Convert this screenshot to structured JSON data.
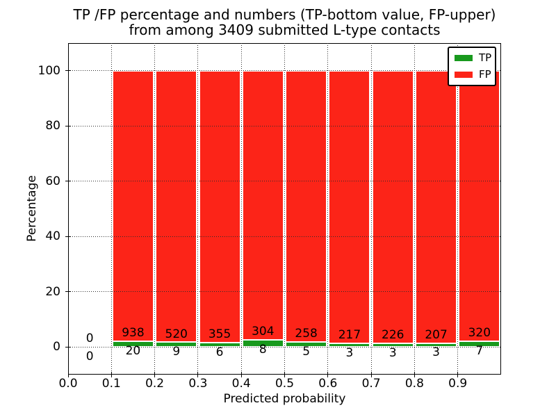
{
  "chart_data": {
    "type": "bar",
    "stacked": true,
    "title_line1": "TP /FP percentage and numbers (TP-bottom value, FP-upper)",
    "title_line2": "from among 3409 submitted L-type contacts",
    "xlabel": "Predicted probability",
    "ylabel": "Percentage",
    "xlim": [
      0.0,
      1.0
    ],
    "ylim": [
      -10,
      110
    ],
    "grid": true,
    "legend_position": "upper right",
    "legend": [
      {
        "label": "TP",
        "color": "#18991d"
      },
      {
        "label": "FP",
        "color": "#fc2418"
      }
    ],
    "colors": {
      "tp": "#18991d",
      "fp": "#fc2418"
    },
    "xticks": [
      {
        "value": 0.0,
        "label": "0.0"
      },
      {
        "value": 0.1,
        "label": "0.1"
      },
      {
        "value": 0.2,
        "label": "0.2"
      },
      {
        "value": 0.3,
        "label": "0.3"
      },
      {
        "value": 0.4,
        "label": "0.4"
      },
      {
        "value": 0.5,
        "label": "0.5"
      },
      {
        "value": 0.6,
        "label": "0.6"
      },
      {
        "value": 0.7,
        "label": "0.7"
      },
      {
        "value": 0.8,
        "label": "0.8"
      },
      {
        "value": 0.9,
        "label": "0.9"
      }
    ],
    "yticks": [
      {
        "value": 0,
        "label": "0"
      },
      {
        "value": 20,
        "label": "20"
      },
      {
        "value": 40,
        "label": "40"
      },
      {
        "value": 60,
        "label": "60"
      },
      {
        "value": 80,
        "label": "80"
      },
      {
        "value": 100,
        "label": "100"
      }
    ],
    "bins": [
      {
        "range": [
          0.0,
          0.1
        ],
        "tp": 0,
        "fp": 0
      },
      {
        "range": [
          0.1,
          0.2
        ],
        "tp": 20,
        "fp": 938
      },
      {
        "range": [
          0.2,
          0.3
        ],
        "tp": 9,
        "fp": 520
      },
      {
        "range": [
          0.3,
          0.4
        ],
        "tp": 6,
        "fp": 355
      },
      {
        "range": [
          0.4,
          0.5
        ],
        "tp": 8,
        "fp": 304
      },
      {
        "range": [
          0.5,
          0.6
        ],
        "tp": 5,
        "fp": 258
      },
      {
        "range": [
          0.6,
          0.7
        ],
        "tp": 3,
        "fp": 217
      },
      {
        "range": [
          0.7,
          0.8
        ],
        "tp": 3,
        "fp": 226
      },
      {
        "range": [
          0.8,
          0.9
        ],
        "tp": 3,
        "fp": 207
      },
      {
        "range": [
          0.9,
          1.0
        ],
        "tp": 7,
        "fp": 320
      }
    ]
  }
}
